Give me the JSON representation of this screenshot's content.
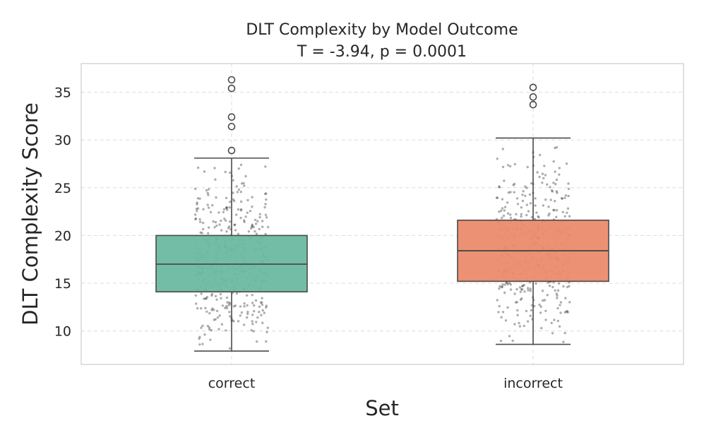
{
  "chart_data": {
    "type": "box",
    "title": "DLT Complexity by Model Outcome",
    "subtitle": "T = -3.94, p = 0.0001",
    "xlabel": "Set",
    "ylabel": "DLT Complexity Score",
    "ylim": [
      6.5,
      38.0
    ],
    "yticks": [
      10,
      15,
      20,
      25,
      30,
      35
    ],
    "grid": true,
    "categories": [
      "correct",
      "incorrect"
    ],
    "series": [
      {
        "name": "correct",
        "color": "#6bb9a1",
        "whisker_low": 7.9,
        "q1": 14.1,
        "median": 17.0,
        "q3": 20.0,
        "whisker_high": 28.1,
        "outliers": [
          28.9,
          31.4,
          32.4,
          35.4,
          36.3
        ]
      },
      {
        "name": "incorrect",
        "color": "#eb8b6c",
        "whisker_low": 8.6,
        "q1": 15.2,
        "median": 18.4,
        "q3": 21.6,
        "whisker_high": 30.2,
        "outliers": [
          33.7,
          34.5,
          35.5
        ]
      }
    ],
    "jitter_points": "stripplot of individual scores overlaid on each box"
  }
}
